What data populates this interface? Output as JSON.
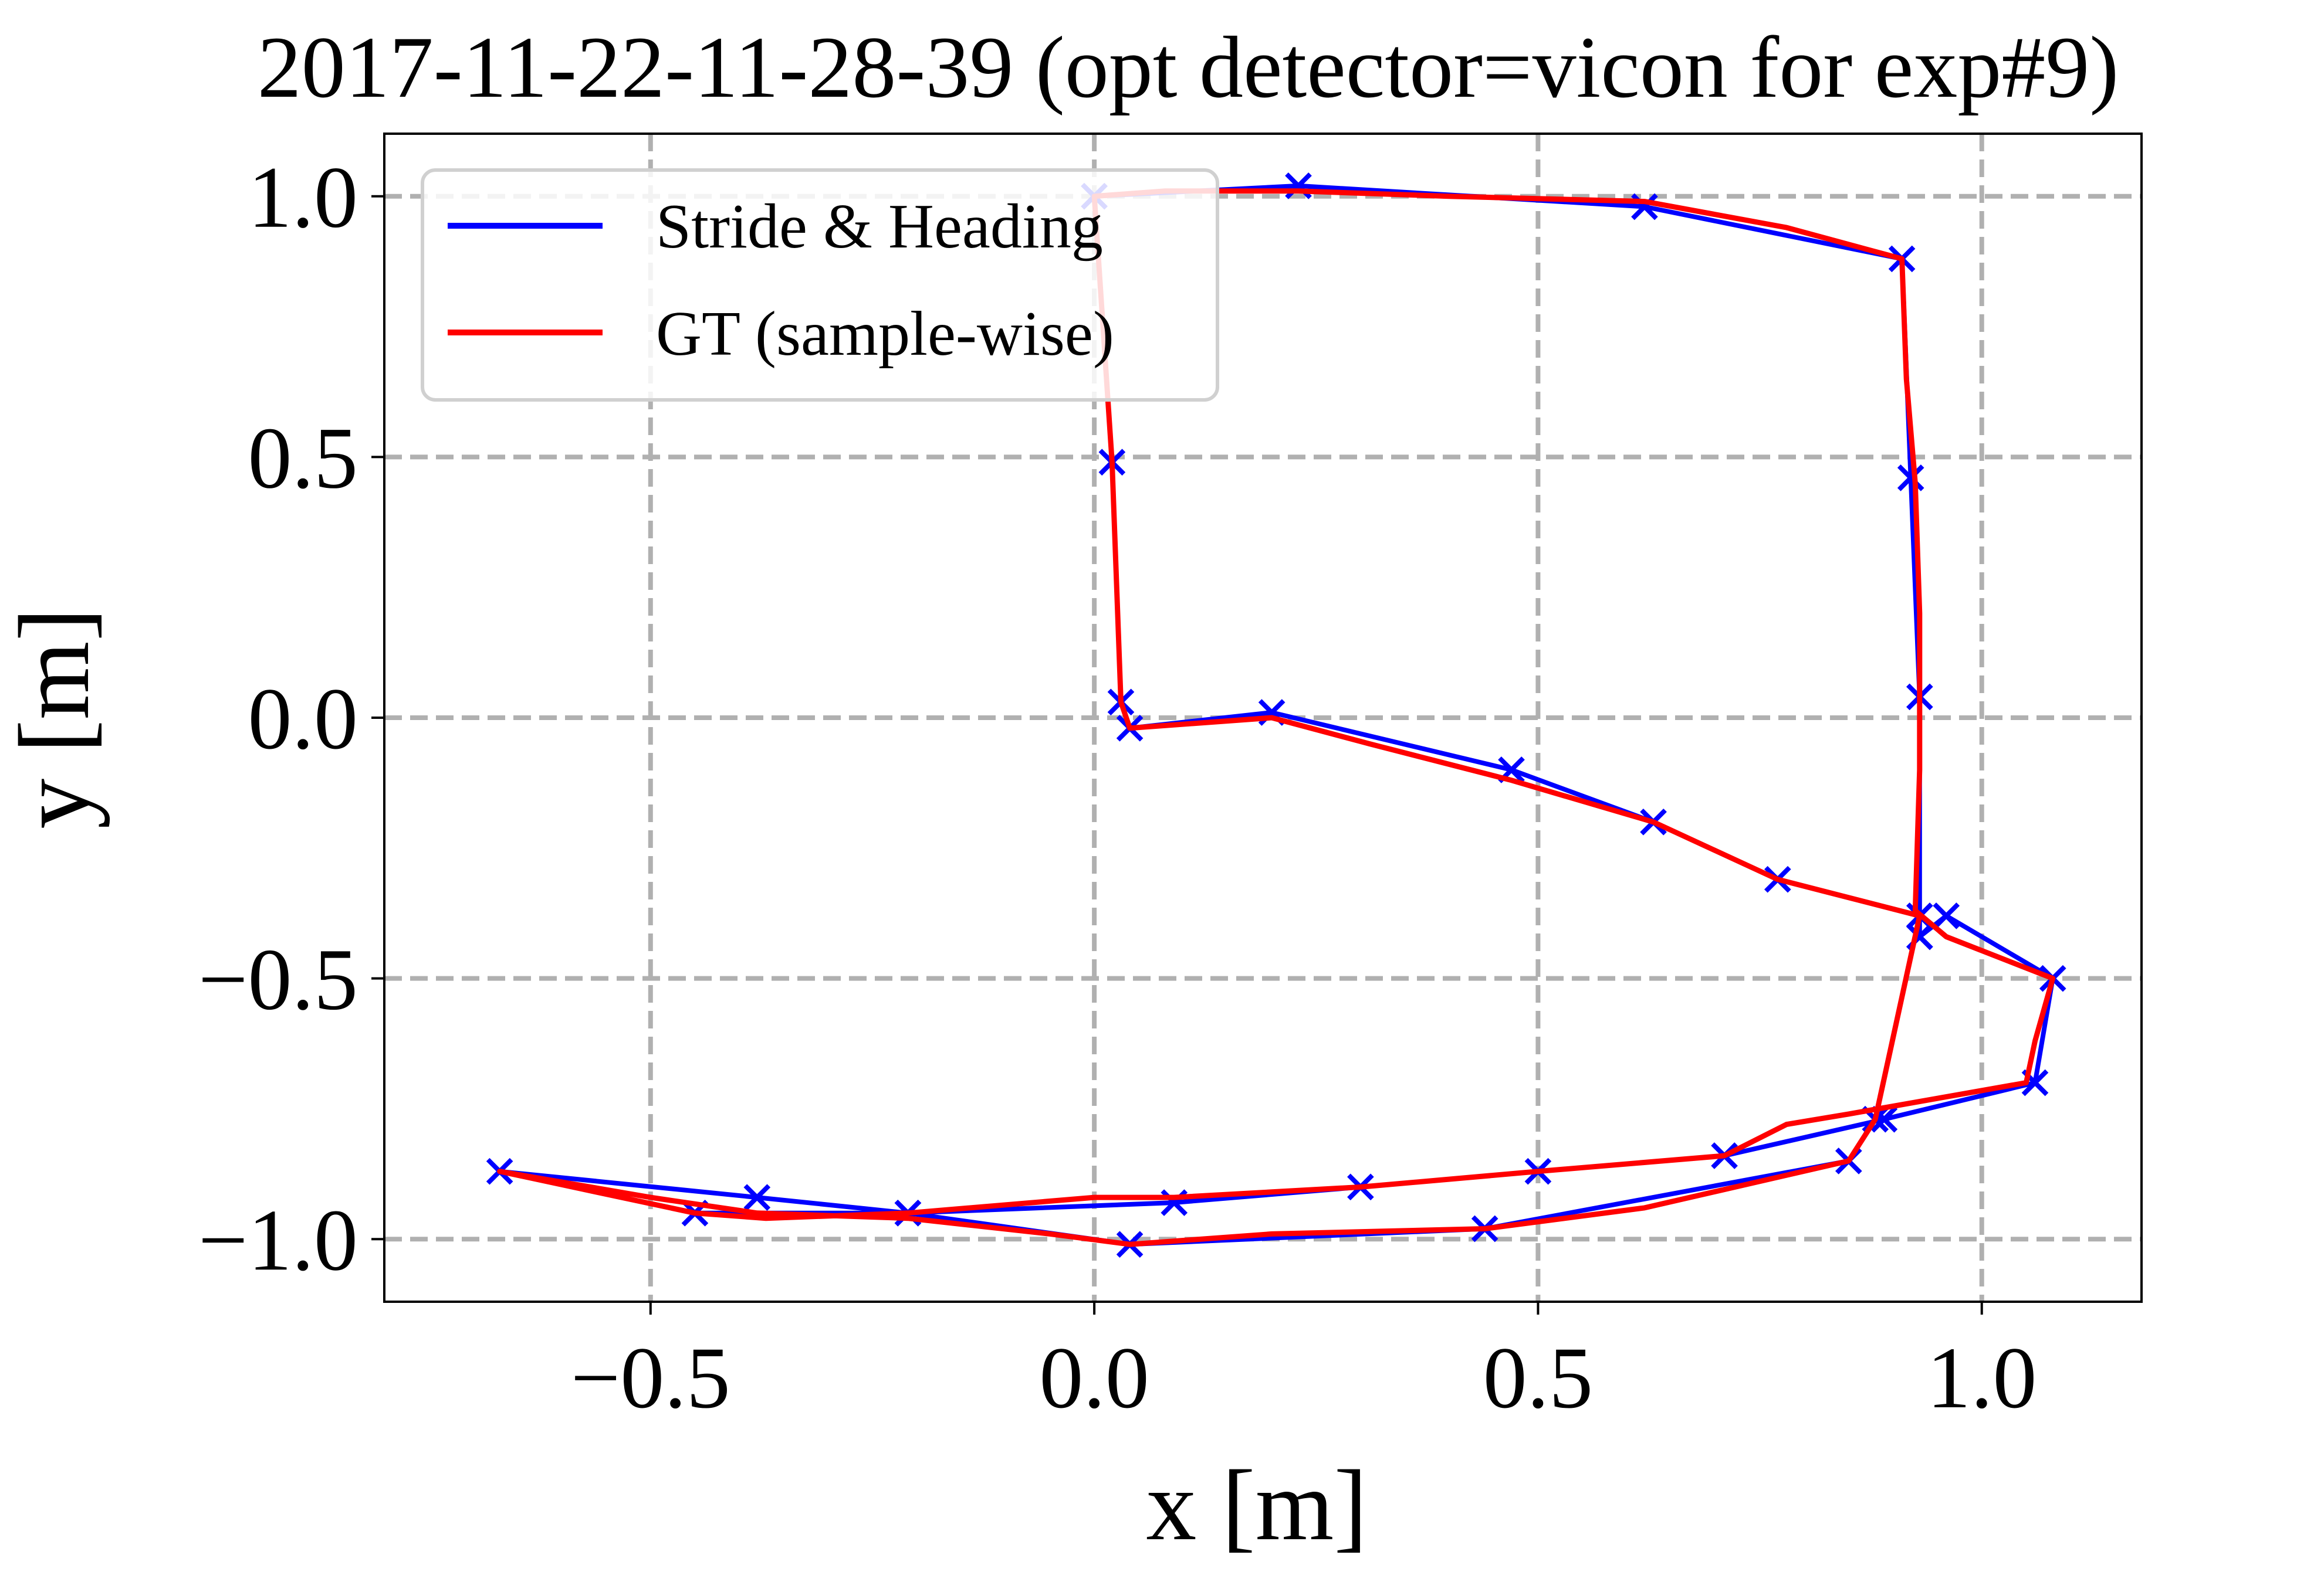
{
  "chart_data": {
    "type": "line",
    "title": "2017-11-22-11-28-39 (opt detector=vicon for exp#9)",
    "xlabel": "x [m]",
    "ylabel": "y [m]",
    "xlim": [
      -0.8,
      1.18
    ],
    "ylim": [
      -1.12,
      1.12
    ],
    "xticks": [
      -0.5,
      0.0,
      0.5,
      1.0
    ],
    "yticks": [
      -1.0,
      -0.5,
      0.0,
      0.5,
      1.0
    ],
    "xtick_labels": [
      "−0.5",
      "0.0",
      "0.5",
      "1.0"
    ],
    "ytick_labels": [
      "−1.0",
      "−0.5",
      "0.0",
      "0.5",
      "1.0"
    ],
    "grid": true,
    "legend_position": "upper-left",
    "series": [
      {
        "name": "Stride & Heading",
        "color": "#0000ff",
        "marker": "x",
        "x": [
          0.0,
          0.23,
          0.62,
          0.91,
          0.92,
          0.93,
          0.93,
          0.93,
          0.96,
          1.08,
          1.06,
          0.89,
          0.71,
          0.5,
          0.3,
          0.09,
          -0.21,
          -0.45,
          -0.67,
          -0.38,
          -0.21,
          0.04,
          0.44,
          0.85,
          0.88,
          0.93,
          0.77,
          0.63,
          0.47,
          0.2,
          0.04,
          0.03,
          0.02,
          0.0
        ],
        "y": [
          1.0,
          1.02,
          0.98,
          0.88,
          0.46,
          0.04,
          -0.42,
          -0.42,
          -0.38,
          -0.5,
          -0.7,
          -0.77,
          -0.84,
          -0.87,
          -0.9,
          -0.93,
          -0.95,
          -0.95,
          -0.87,
          -0.92,
          -0.95,
          -1.01,
          -0.98,
          -0.85,
          -0.77,
          -0.38,
          -0.31,
          -0.2,
          -0.1,
          0.01,
          -0.02,
          0.03,
          0.49,
          1.0
        ]
      },
      {
        "name": "GT (sample-wise)",
        "color": "#ff0000",
        "marker": "none",
        "x": [
          0.0,
          0.08,
          0.23,
          0.4,
          0.62,
          0.78,
          0.91,
          0.915,
          0.925,
          0.93,
          0.93,
          0.925,
          0.96,
          1.02,
          1.08,
          1.06,
          1.05,
          0.95,
          0.85,
          0.78,
          0.71,
          0.5,
          0.3,
          0.09,
          0.0,
          -0.21,
          -0.37,
          -0.45,
          -0.56,
          -0.67,
          -0.5,
          -0.38,
          -0.21,
          -0.05,
          0.04,
          0.2,
          0.44,
          0.62,
          0.85,
          0.88,
          0.93,
          0.77,
          0.63,
          0.47,
          0.31,
          0.2,
          0.04,
          0.03,
          0.02,
          0.0
        ],
        "y": [
          1.0,
          1.01,
          1.01,
          1.0,
          0.99,
          0.94,
          0.88,
          0.65,
          0.45,
          0.2,
          -0.1,
          -0.37,
          -0.42,
          -0.46,
          -0.5,
          -0.62,
          -0.7,
          -0.73,
          -0.76,
          -0.78,
          -0.84,
          -0.87,
          -0.9,
          -0.92,
          -0.92,
          -0.95,
          -0.96,
          -0.95,
          -0.91,
          -0.87,
          -0.92,
          -0.95,
          -0.96,
          -0.99,
          -1.01,
          -0.99,
          -0.98,
          -0.94,
          -0.85,
          -0.77,
          -0.38,
          -0.31,
          -0.2,
          -0.12,
          -0.05,
          0.0,
          -0.02,
          0.03,
          0.49,
          1.0
        ]
      }
    ]
  }
}
